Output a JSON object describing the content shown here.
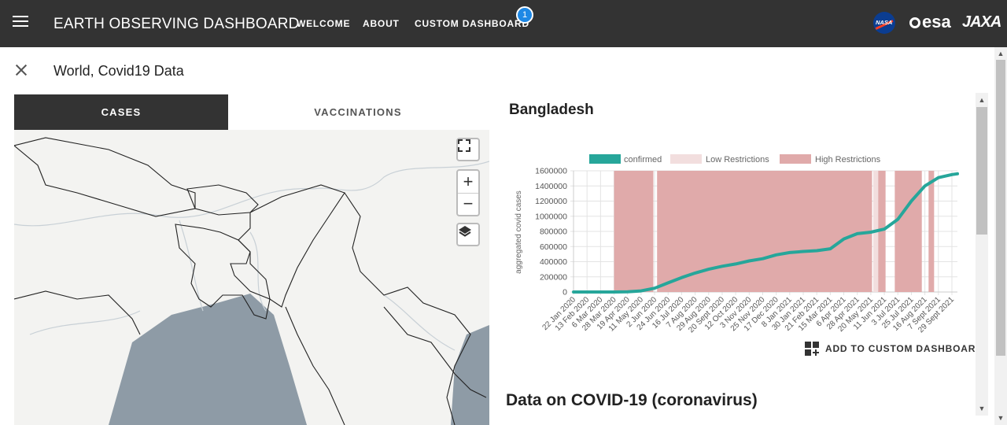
{
  "appbar": {
    "title": "EARTH OBSERVING DASHBOARD",
    "nav": [
      {
        "label": "WELCOME"
      },
      {
        "label": "ABOUT"
      },
      {
        "label": "CUSTOM DASHBOARD",
        "badge": "1"
      }
    ],
    "logos": {
      "nasa": "NASA",
      "esa": "esa",
      "jaxa": "JAXA"
    }
  },
  "panel": {
    "title": "World, Covid19 Data",
    "tabs": [
      {
        "label": "CASES",
        "active": true
      },
      {
        "label": "VACCINATIONS",
        "active": false
      }
    ]
  },
  "map": {
    "zoom_in": "+",
    "zoom_out": "−"
  },
  "country": "Bangladesh",
  "add_to_dashboard": "ADD TO CUSTOM DASHBOARD",
  "section_title": "Data on COVID-19 (coronavirus)",
  "colors": {
    "appbar": "#333333",
    "confirmed": "#26a69a",
    "low_restrictions": "#f2dede",
    "high_restrictions": "#e0aaaa",
    "badge": "#1e88e5"
  },
  "chart_data": {
    "type": "line",
    "ylabel": "aggregated covid cases",
    "ylim": [
      0,
      1600000
    ],
    "yticks": [
      0,
      200000,
      400000,
      600000,
      800000,
      1000000,
      1200000,
      1400000,
      1600000
    ],
    "xticks": [
      "22 Jan 2020",
      "13 Feb 2020",
      "6 Mar 2020",
      "28 Mar 2020",
      "19 Apr 2020",
      "11 May 2020",
      "2 Jun 2020",
      "24 Jun 2020",
      "16 Jul 2020",
      "7 Aug 2020",
      "29 Aug 2020",
      "20 Sept 2020",
      "12 Oct 2020",
      "3 Nov 2020",
      "25 Nov 2020",
      "17 Dec 2020",
      "8 Jan 2021",
      "30 Jan 2021",
      "21 Feb 2021",
      "15 Mar 2021",
      "6 Apr 2021",
      "28 Apr 2021",
      "20 May 2021",
      "11 Jun 2021",
      "3 Jul 2021",
      "25 Jul 2021",
      "16 Aug 2021",
      "7 Sept 2021",
      "29 Sept 2021"
    ],
    "legend": [
      "confirmed",
      "Low Restrictions",
      "High Restrictions"
    ],
    "series": [
      {
        "name": "confirmed",
        "x": [
          "22 Jan 2020",
          "13 Feb 2020",
          "6 Mar 2020",
          "28 Mar 2020",
          "19 Apr 2020",
          "11 May 2020",
          "2 Jun 2020",
          "24 Jun 2020",
          "16 Jul 2020",
          "7 Aug 2020",
          "29 Aug 2020",
          "20 Sept 2020",
          "12 Oct 2020",
          "3 Nov 2020",
          "25 Nov 2020",
          "17 Dec 2020",
          "8 Jan 2021",
          "30 Jan 2021",
          "21 Feb 2021",
          "15 Mar 2021",
          "6 Apr 2021",
          "28 Apr 2021",
          "20 May 2021",
          "11 Jun 2021",
          "3 Jul 2021",
          "25 Jul 2021",
          "16 Aug 2021",
          "7 Sept 2021",
          "29 Sept 2021",
          "8 Oct 2021"
        ],
        "values": [
          0,
          0,
          0,
          0,
          2500,
          15000,
          50000,
          120000,
          190000,
          250000,
          300000,
          340000,
          370000,
          410000,
          440000,
          490000,
          520000,
          535000,
          545000,
          570000,
          700000,
          770000,
          790000,
          830000,
          960000,
          1200000,
          1400000,
          1510000,
          1550000,
          1560000
        ]
      }
    ],
    "restrictions": [
      {
        "level": "High Restrictions",
        "from": "28 Mar 2020",
        "to": "31 May 2020"
      },
      {
        "level": "High Restrictions",
        "from": "6 Jun 2020",
        "to": "22 May 2021"
      },
      {
        "level": "Low Restrictions",
        "from": "24 May 2021",
        "to": "1 Jun 2021"
      },
      {
        "level": "High Restrictions",
        "from": "1 Jun 2021",
        "to": "13 Jun 2021"
      },
      {
        "level": "High Restrictions",
        "from": "28 Jun 2021",
        "to": "11 Aug 2021"
      },
      {
        "level": "High Restrictions",
        "from": "22 Aug 2021",
        "to": "31 Aug 2021"
      }
    ]
  }
}
